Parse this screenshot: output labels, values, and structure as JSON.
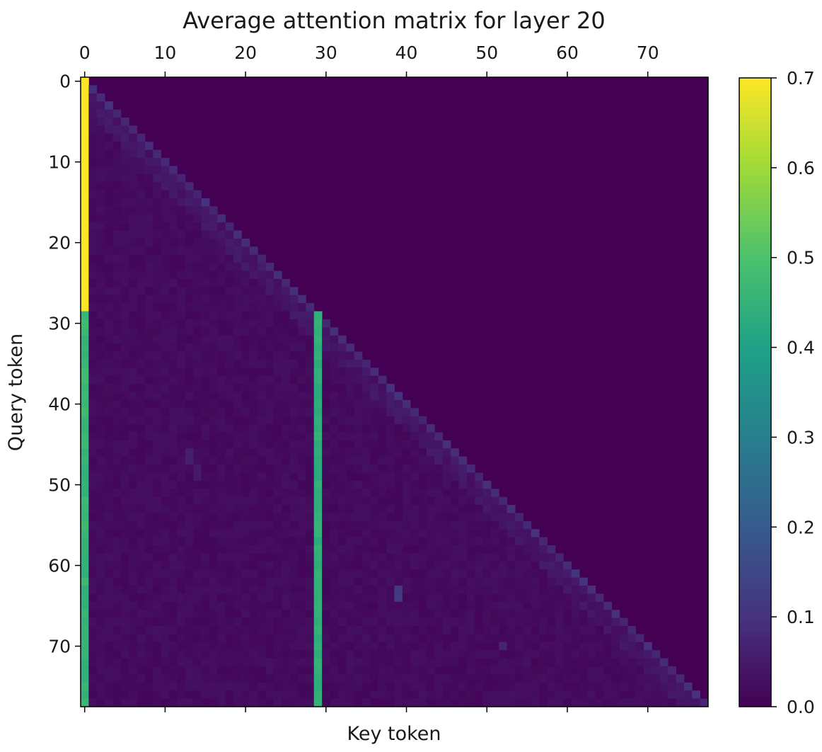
{
  "chart_data": {
    "type": "heatmap",
    "title": "Average attention matrix for layer 20",
    "xlabel": "Key token",
    "ylabel": "Query token",
    "n_rows": 78,
    "n_cols": 78,
    "x_ticks": [
      0,
      10,
      20,
      30,
      40,
      50,
      60,
      70
    ],
    "y_ticks": [
      0,
      10,
      20,
      30,
      40,
      50,
      60,
      70
    ],
    "x_axis_position": "top",
    "colorbar": {
      "colormap": "viridis",
      "vmin": 0.0,
      "vmax": 0.7,
      "ticks": [
        0.0,
        0.1,
        0.2,
        0.3,
        0.4,
        0.5,
        0.6,
        0.7
      ],
      "tick_labels": [
        "0.0",
        "0.1",
        "0.2",
        "0.3",
        "0.4",
        "0.5",
        "0.6",
        "0.7"
      ]
    },
    "structure": {
      "mask": "causal (key index <= query index)",
      "key0_value_rows_0_28": 0.7,
      "key0_value_rows_29_77": 0.46,
      "key29_value_rows_29_77": 0.44,
      "diagonal_value_approx": 0.07,
      "background_value_approx": 0.01
    },
    "highlights": [
      {
        "query": 46,
        "key": 13,
        "value": 0.06
      },
      {
        "query": 47,
        "key": 13,
        "value": 0.06
      },
      {
        "query": 48,
        "key": 14,
        "value": 0.05
      },
      {
        "query": 49,
        "key": 14,
        "value": 0.05
      },
      {
        "query": 63,
        "key": 39,
        "value": 0.12
      },
      {
        "query": 64,
        "key": 39,
        "value": 0.12
      },
      {
        "query": 62,
        "key": 62,
        "value": 0.1
      },
      {
        "query": 70,
        "key": 52,
        "value": 0.07
      },
      {
        "query": 41,
        "key": 40,
        "value": 0.05
      },
      {
        "query": 42,
        "key": 41,
        "value": 0.05
      }
    ]
  }
}
